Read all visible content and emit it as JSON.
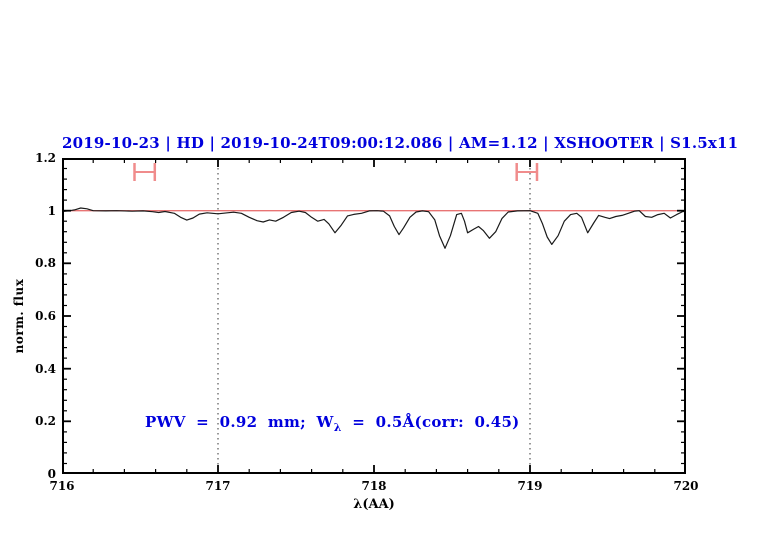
{
  "header": {
    "title": "2019-10-23 | HD | 2019-10-24T09:00:12.086 | AM=1.12 | XSHOOTER | S1.5x11",
    "color": "#0000dd"
  },
  "annotation": {
    "prefix": "PWV = 0.92 mm; W",
    "subscript": "λ",
    "suffix": " = 0.5Å(corr: 0.45)",
    "color": "#0000dd"
  },
  "chart_data": {
    "type": "line",
    "title": "2019-10-23 | HD | 2019-10-24T09:00:12.086 | AM=1.12 | XSHOOTER | S1.5x11",
    "xlabel": "λ(AA)",
    "ylabel": "norm. flux",
    "xlim": [
      716,
      720
    ],
    "ylim": [
      0,
      1.2
    ],
    "xticks": [
      716,
      717,
      718,
      719,
      720
    ],
    "xtick_labels": [
      "716",
      "717",
      "718",
      "719",
      "720"
    ],
    "yticks": [
      0,
      0.2,
      0.4,
      0.6,
      0.8,
      1,
      1.2
    ],
    "ytick_labels": [
      "0",
      "0.2",
      "0.4",
      "0.6",
      "0.8",
      "1",
      "1.2"
    ],
    "x_minor_step": 0.2,
    "y_minor_step": 0.04,
    "grid": "off",
    "legend": "none",
    "vlines": {
      "positions": [
        717,
        719
      ],
      "style": "dotted",
      "color": "#333333"
    },
    "continuum_line": {
      "y": 1.0,
      "color": "#e87474"
    },
    "range_markers": {
      "color": "#f08c8c",
      "items": [
        {
          "x_center": 716.53,
          "x_halfwidth": 0.065,
          "y": 1.147
        },
        {
          "x_center": 718.98,
          "x_halfwidth": 0.065,
          "y": 1.147
        }
      ]
    },
    "series": [
      {
        "name": "observed-telluric-spectrum",
        "color": "#1a1a1a",
        "points": [
          [
            716.0,
            0.997
          ],
          [
            716.05,
            1.0
          ],
          [
            716.08,
            1.003
          ],
          [
            716.12,
            1.01
          ],
          [
            716.16,
            1.007
          ],
          [
            716.2,
            1.0
          ],
          [
            716.28,
            0.999
          ],
          [
            716.35,
            1.0
          ],
          [
            716.45,
            0.998
          ],
          [
            716.52,
            0.999
          ],
          [
            716.58,
            0.996
          ],
          [
            716.62,
            0.993
          ],
          [
            716.66,
            0.997
          ],
          [
            716.72,
            0.99
          ],
          [
            716.76,
            0.975
          ],
          [
            716.8,
            0.964
          ],
          [
            716.84,
            0.972
          ],
          [
            716.88,
            0.987
          ],
          [
            716.93,
            0.992
          ],
          [
            717.0,
            0.988
          ],
          [
            717.06,
            0.992
          ],
          [
            717.1,
            0.994
          ],
          [
            717.15,
            0.99
          ],
          [
            717.2,
            0.975
          ],
          [
            717.25,
            0.962
          ],
          [
            717.29,
            0.957
          ],
          [
            717.33,
            0.965
          ],
          [
            717.37,
            0.96
          ],
          [
            717.42,
            0.975
          ],
          [
            717.47,
            0.993
          ],
          [
            717.52,
            0.998
          ],
          [
            717.56,
            0.993
          ],
          [
            717.6,
            0.975
          ],
          [
            717.64,
            0.96
          ],
          [
            717.68,
            0.967
          ],
          [
            717.71,
            0.95
          ],
          [
            717.75,
            0.916
          ],
          [
            717.79,
            0.945
          ],
          [
            717.83,
            0.98
          ],
          [
            717.87,
            0.986
          ],
          [
            717.92,
            0.99
          ],
          [
            717.97,
            0.999
          ],
          [
            718.02,
            1.0
          ],
          [
            718.06,
            0.998
          ],
          [
            718.1,
            0.98
          ],
          [
            718.13,
            0.94
          ],
          [
            718.16,
            0.909
          ],
          [
            718.19,
            0.935
          ],
          [
            718.23,
            0.975
          ],
          [
            718.27,
            0.995
          ],
          [
            718.31,
            0.999
          ],
          [
            718.35,
            0.996
          ],
          [
            718.39,
            0.965
          ],
          [
            718.42,
            0.905
          ],
          [
            718.455,
            0.857
          ],
          [
            718.49,
            0.905
          ],
          [
            718.53,
            0.985
          ],
          [
            718.56,
            0.99
          ],
          [
            718.58,
            0.96
          ],
          [
            718.6,
            0.916
          ],
          [
            718.64,
            0.93
          ],
          [
            718.67,
            0.94
          ],
          [
            718.7,
            0.925
          ],
          [
            718.74,
            0.895
          ],
          [
            718.78,
            0.92
          ],
          [
            718.82,
            0.97
          ],
          [
            718.86,
            0.995
          ],
          [
            718.92,
            0.999
          ],
          [
            719.0,
            1.0
          ],
          [
            719.05,
            0.99
          ],
          [
            719.08,
            0.95
          ],
          [
            719.11,
            0.9
          ],
          [
            719.14,
            0.872
          ],
          [
            719.18,
            0.905
          ],
          [
            719.22,
            0.96
          ],
          [
            719.26,
            0.985
          ],
          [
            719.3,
            0.99
          ],
          [
            719.33,
            0.975
          ],
          [
            719.37,
            0.916
          ],
          [
            719.41,
            0.955
          ],
          [
            719.44,
            0.982
          ],
          [
            719.48,
            0.975
          ],
          [
            719.51,
            0.97
          ],
          [
            719.55,
            0.978
          ],
          [
            719.59,
            0.982
          ],
          [
            719.63,
            0.99
          ],
          [
            719.67,
            0.998
          ],
          [
            719.7,
            1.0
          ],
          [
            719.74,
            0.978
          ],
          [
            719.78,
            0.975
          ],
          [
            719.82,
            0.985
          ],
          [
            719.86,
            0.99
          ],
          [
            719.9,
            0.972
          ],
          [
            719.94,
            0.985
          ],
          [
            719.98,
            0.997
          ],
          [
            720.0,
            0.997
          ]
        ]
      }
    ]
  }
}
